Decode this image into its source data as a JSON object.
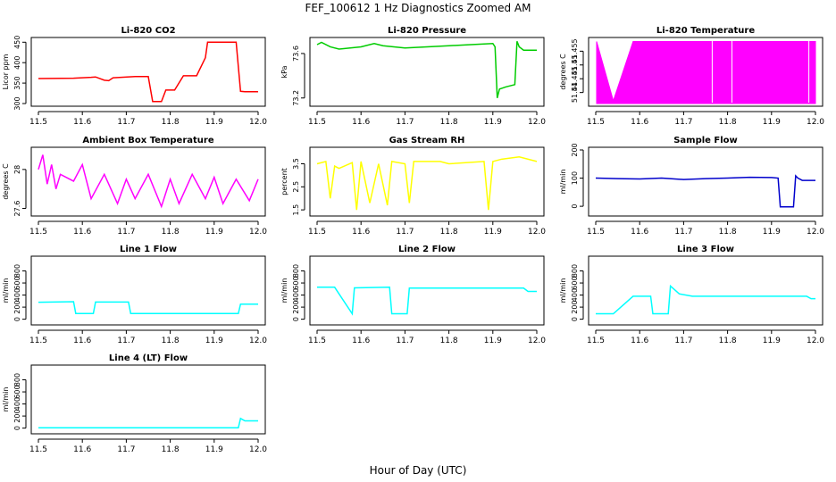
{
  "figure": {
    "title": "FEF_100612  1 Hz Diagnostics Zoomed AM",
    "xlabel": "Hour of Day (UTC)"
  },
  "chart_data": [
    {
      "type": "line",
      "title": "Li-820 CO2",
      "ylabel": "Licor ppm",
      "color": "#ff0000",
      "xlim": [
        11.5,
        12.0
      ],
      "ylim": [
        300,
        455
      ],
      "xticks": [
        11.5,
        11.6,
        11.7,
        11.8,
        11.9,
        12.0
      ],
      "yticks": [
        300,
        350,
        400,
        450
      ],
      "x": [
        11.5,
        11.58,
        11.6,
        11.62,
        11.63,
        11.65,
        11.66,
        11.67,
        11.72,
        11.73,
        11.75,
        11.76,
        11.78,
        11.79,
        11.8,
        11.81,
        11.83,
        11.85,
        11.86,
        11.88,
        11.885,
        11.92,
        11.95,
        11.96,
        11.97,
        12.0
      ],
      "y": [
        361,
        362,
        363,
        364,
        365,
        357,
        356,
        363,
        366,
        366,
        366,
        305,
        305,
        333,
        333,
        333,
        368,
        368,
        368,
        412,
        450,
        450,
        450,
        330,
        329,
        329
      ]
    },
    {
      "type": "line",
      "title": "Li-820 Pressure",
      "ylabel": "kPa",
      "color": "#00cc00",
      "xlim": [
        11.5,
        12.0
      ],
      "ylim": [
        73.15,
        73.72
      ],
      "xticks": [
        11.5,
        11.6,
        11.7,
        11.8,
        11.9,
        12.0
      ],
      "yticks": [
        73.2,
        73.6
      ],
      "x": [
        11.5,
        11.51,
        11.53,
        11.55,
        11.6,
        11.63,
        11.65,
        11.7,
        11.75,
        11.8,
        11.85,
        11.9,
        11.905,
        11.91,
        11.915,
        11.93,
        11.95,
        11.955,
        11.96,
        11.97,
        11.99,
        12.0
      ],
      "y": [
        73.68,
        73.7,
        73.66,
        73.64,
        73.66,
        73.69,
        73.67,
        73.65,
        73.66,
        73.67,
        73.68,
        73.69,
        73.66,
        73.2,
        73.28,
        73.3,
        73.32,
        73.71,
        73.66,
        73.63,
        73.63,
        73.63
      ]
    },
    {
      "type": "area",
      "title": "Li-820 Temperature",
      "ylabel": "degrees C",
      "color": "#ff00ff",
      "xlim": [
        11.5,
        12.0
      ],
      "ylim": [
        51.436,
        51.459
      ],
      "xticks": [
        11.5,
        11.6,
        11.7,
        11.8,
        11.9,
        12.0
      ],
      "yticks": [
        51.44,
        51.445,
        51.45,
        51.455
      ],
      "x": [
        11.502,
        11.54,
        11.585,
        12.0
      ],
      "y": [
        51.4585,
        51.437,
        51.4585,
        51.4585
      ]
    },
    {
      "type": "line",
      "title": "Ambient Box Temperature",
      "ylabel": "degrees C",
      "color": "#ff00ff",
      "xlim": [
        11.5,
        12.0
      ],
      "ylim": [
        27.55,
        28.2
      ],
      "xticks": [
        11.5,
        11.6,
        11.7,
        11.8,
        11.9,
        12.0
      ],
      "yticks": [
        27.6,
        28.0
      ],
      "x": [
        11.5,
        11.51,
        11.52,
        11.53,
        11.54,
        11.55,
        11.58,
        11.6,
        11.62,
        11.65,
        11.68,
        11.7,
        11.72,
        11.75,
        11.78,
        11.8,
        11.82,
        11.85,
        11.88,
        11.9,
        11.92,
        11.95,
        11.98,
        12.0
      ],
      "y": [
        28.0,
        28.15,
        27.85,
        28.05,
        27.8,
        27.95,
        27.88,
        28.05,
        27.7,
        27.95,
        27.65,
        27.9,
        27.7,
        27.95,
        27.62,
        27.9,
        27.65,
        27.95,
        27.7,
        27.92,
        27.65,
        27.9,
        27.68,
        27.9
      ]
    },
    {
      "type": "line",
      "title": "Gas Stream RH",
      "ylabel": "percent",
      "color": "#ffff00",
      "xlim": [
        11.5,
        12.0
      ],
      "ylim": [
        1.35,
        4.1
      ],
      "xticks": [
        11.5,
        11.6,
        11.7,
        11.8,
        11.9,
        12.0
      ],
      "yticks": [
        1.5,
        2.5,
        3.5
      ],
      "x": [
        11.5,
        11.52,
        11.53,
        11.54,
        11.55,
        11.58,
        11.59,
        11.6,
        11.62,
        11.64,
        11.66,
        11.67,
        11.7,
        11.71,
        11.72,
        11.78,
        11.8,
        11.88,
        11.89,
        11.9,
        11.92,
        11.96,
        12.0
      ],
      "y": [
        3.5,
        3.6,
        2.0,
        3.4,
        3.3,
        3.55,
        1.5,
        3.6,
        1.8,
        3.5,
        1.7,
        3.6,
        3.5,
        1.8,
        3.6,
        3.6,
        3.5,
        3.6,
        1.5,
        3.6,
        3.7,
        3.8,
        3.6
      ]
    },
    {
      "type": "line",
      "title": "Sample Flow",
      "ylabel": "ml/min",
      "color": "#0000cc",
      "xlim": [
        11.5,
        12.0
      ],
      "ylim": [
        -25,
        200
      ],
      "xticks": [
        11.5,
        11.6,
        11.7,
        11.8,
        11.9,
        12.0
      ],
      "yticks": [
        0,
        100,
        200
      ],
      "x": [
        11.5,
        11.55,
        11.6,
        11.65,
        11.7,
        11.75,
        11.8,
        11.85,
        11.9,
        11.915,
        11.92,
        11.95,
        11.955,
        11.96,
        11.97,
        12.0
      ],
      "y": [
        100,
        98,
        97,
        100,
        95,
        98,
        100,
        103,
        102,
        100,
        -2,
        -2,
        108,
        100,
        92,
        92
      ]
    },
    {
      "type": "line",
      "title": "Line 1 Flow",
      "ylabel": "ml/min",
      "color": "#00ffff",
      "xlim": [
        11.5,
        12.0
      ],
      "ylim": [
        -50,
        1000
      ],
      "xticks": [
        11.5,
        11.6,
        11.7,
        11.8,
        11.9,
        12.0
      ],
      "yticks": [
        0,
        200,
        400,
        600,
        800
      ],
      "x": [
        11.5,
        11.58,
        11.585,
        11.625,
        11.63,
        11.705,
        11.71,
        11.955,
        11.96,
        12.0
      ],
      "y": [
        280,
        290,
        95,
        95,
        285,
        285,
        95,
        95,
        250,
        250
      ]
    },
    {
      "type": "line",
      "title": "Line 2 Flow",
      "ylabel": "ml/min",
      "color": "#00ffff",
      "xlim": [
        11.5,
        12.0
      ],
      "ylim": [
        -50,
        1000
      ],
      "xticks": [
        11.5,
        11.6,
        11.7,
        11.8,
        11.9,
        12.0
      ],
      "yticks": [
        0,
        200,
        400,
        600,
        800
      ],
      "x": [
        11.5,
        11.54,
        11.58,
        11.585,
        11.665,
        11.67,
        11.705,
        11.71,
        11.97,
        11.98,
        12.0
      ],
      "y": [
        530,
        530,
        90,
        520,
        530,
        90,
        90,
        515,
        515,
        460,
        460
      ]
    },
    {
      "type": "line",
      "title": "Line 3 Flow",
      "ylabel": "ml/min",
      "color": "#00ffff",
      "xlim": [
        11.5,
        12.0
      ],
      "ylim": [
        -50,
        1000
      ],
      "xticks": [
        11.5,
        11.6,
        11.7,
        11.8,
        11.9,
        12.0
      ],
      "yticks": [
        0,
        200,
        400,
        600,
        800
      ],
      "x": [
        11.5,
        11.54,
        11.585,
        11.625,
        11.63,
        11.665,
        11.67,
        11.69,
        11.72,
        11.98,
        11.99,
        12.0
      ],
      "y": [
        90,
        90,
        380,
        380,
        90,
        90,
        550,
        420,
        380,
        380,
        340,
        340
      ]
    },
    {
      "type": "line",
      "title": "Line 4 (LT) Flow",
      "ylabel": "ml/min",
      "color": "#00ffff",
      "xlim": [
        11.5,
        12.0
      ],
      "ylim": [
        -50,
        1000
      ],
      "xticks": [
        11.5,
        11.6,
        11.7,
        11.8,
        11.9,
        12.0
      ],
      "yticks": [
        0,
        200,
        400,
        600,
        800
      ],
      "x": [
        11.5,
        11.7,
        11.955,
        11.96,
        11.97,
        12.0
      ],
      "y": [
        5,
        5,
        5,
        160,
        120,
        120
      ]
    }
  ]
}
